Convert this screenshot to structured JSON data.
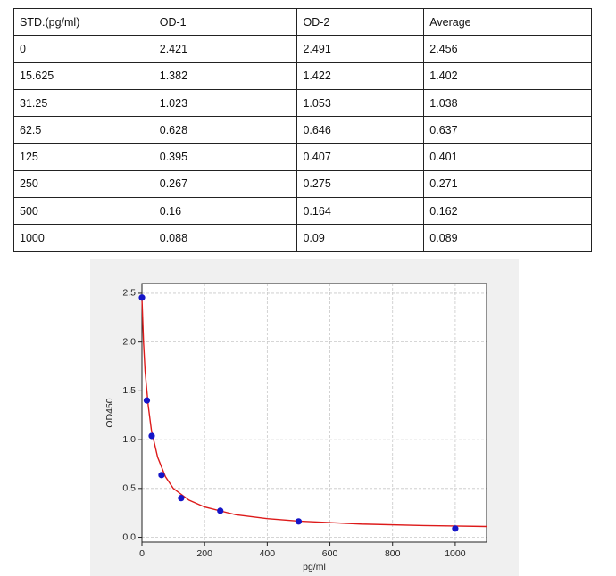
{
  "table": {
    "header": [
      "STD.(pg/ml)",
      "OD-1",
      "OD-2",
      "Average"
    ],
    "rows": [
      [
        "0",
        "2.421",
        "2.491",
        "2.456"
      ],
      [
        "15.625",
        "1.382",
        "1.422",
        "1.402"
      ],
      [
        "31.25",
        "1.023",
        "1.053",
        "1.038"
      ],
      [
        "62.5",
        "0.628",
        "0.646",
        "0.637"
      ],
      [
        "125",
        "0.395",
        "0.407",
        "0.401"
      ],
      [
        "250",
        "0.267",
        "0.275",
        "0.271"
      ],
      [
        "500",
        "0.16",
        "0.164",
        "0.162"
      ],
      [
        "1000",
        "0.088",
        "0.09",
        "0.089"
      ]
    ]
  },
  "chart_data": {
    "type": "scatter",
    "xlabel": "pg/ml",
    "ylabel": "OD450",
    "x": [
      0,
      15.625,
      31.25,
      62.5,
      125,
      250,
      500,
      1000
    ],
    "values": [
      2.456,
      1.402,
      1.038,
      0.637,
      0.401,
      0.271,
      0.162,
      0.089
    ],
    "color": "#1515c8",
    "curve": {
      "color": "#dd1a1a",
      "x": [
        0,
        5,
        10,
        20,
        30,
        50,
        75,
        100,
        150,
        200,
        300,
        400,
        500,
        700,
        900,
        1100
      ],
      "values": [
        2.45,
        2.0,
        1.7,
        1.35,
        1.1,
        0.82,
        0.62,
        0.5,
        0.38,
        0.31,
        0.23,
        0.19,
        0.165,
        0.135,
        0.12,
        0.11
      ]
    },
    "xlim": [
      0,
      1100
    ],
    "ylim": [
      -0.05,
      2.6
    ],
    "xticks": [
      0,
      200,
      400,
      600,
      800,
      1000
    ],
    "yticks": [
      {
        "value": 0,
        "label": "0.0"
      },
      {
        "value": 0.5,
        "label": "0.5"
      },
      {
        "value": 1,
        "label": "1.0"
      },
      {
        "value": 1.5,
        "label": "1.5"
      },
      {
        "value": 2,
        "label": "2.0"
      },
      {
        "value": 2.5,
        "label": "2.5"
      }
    ],
    "grid": true
  }
}
